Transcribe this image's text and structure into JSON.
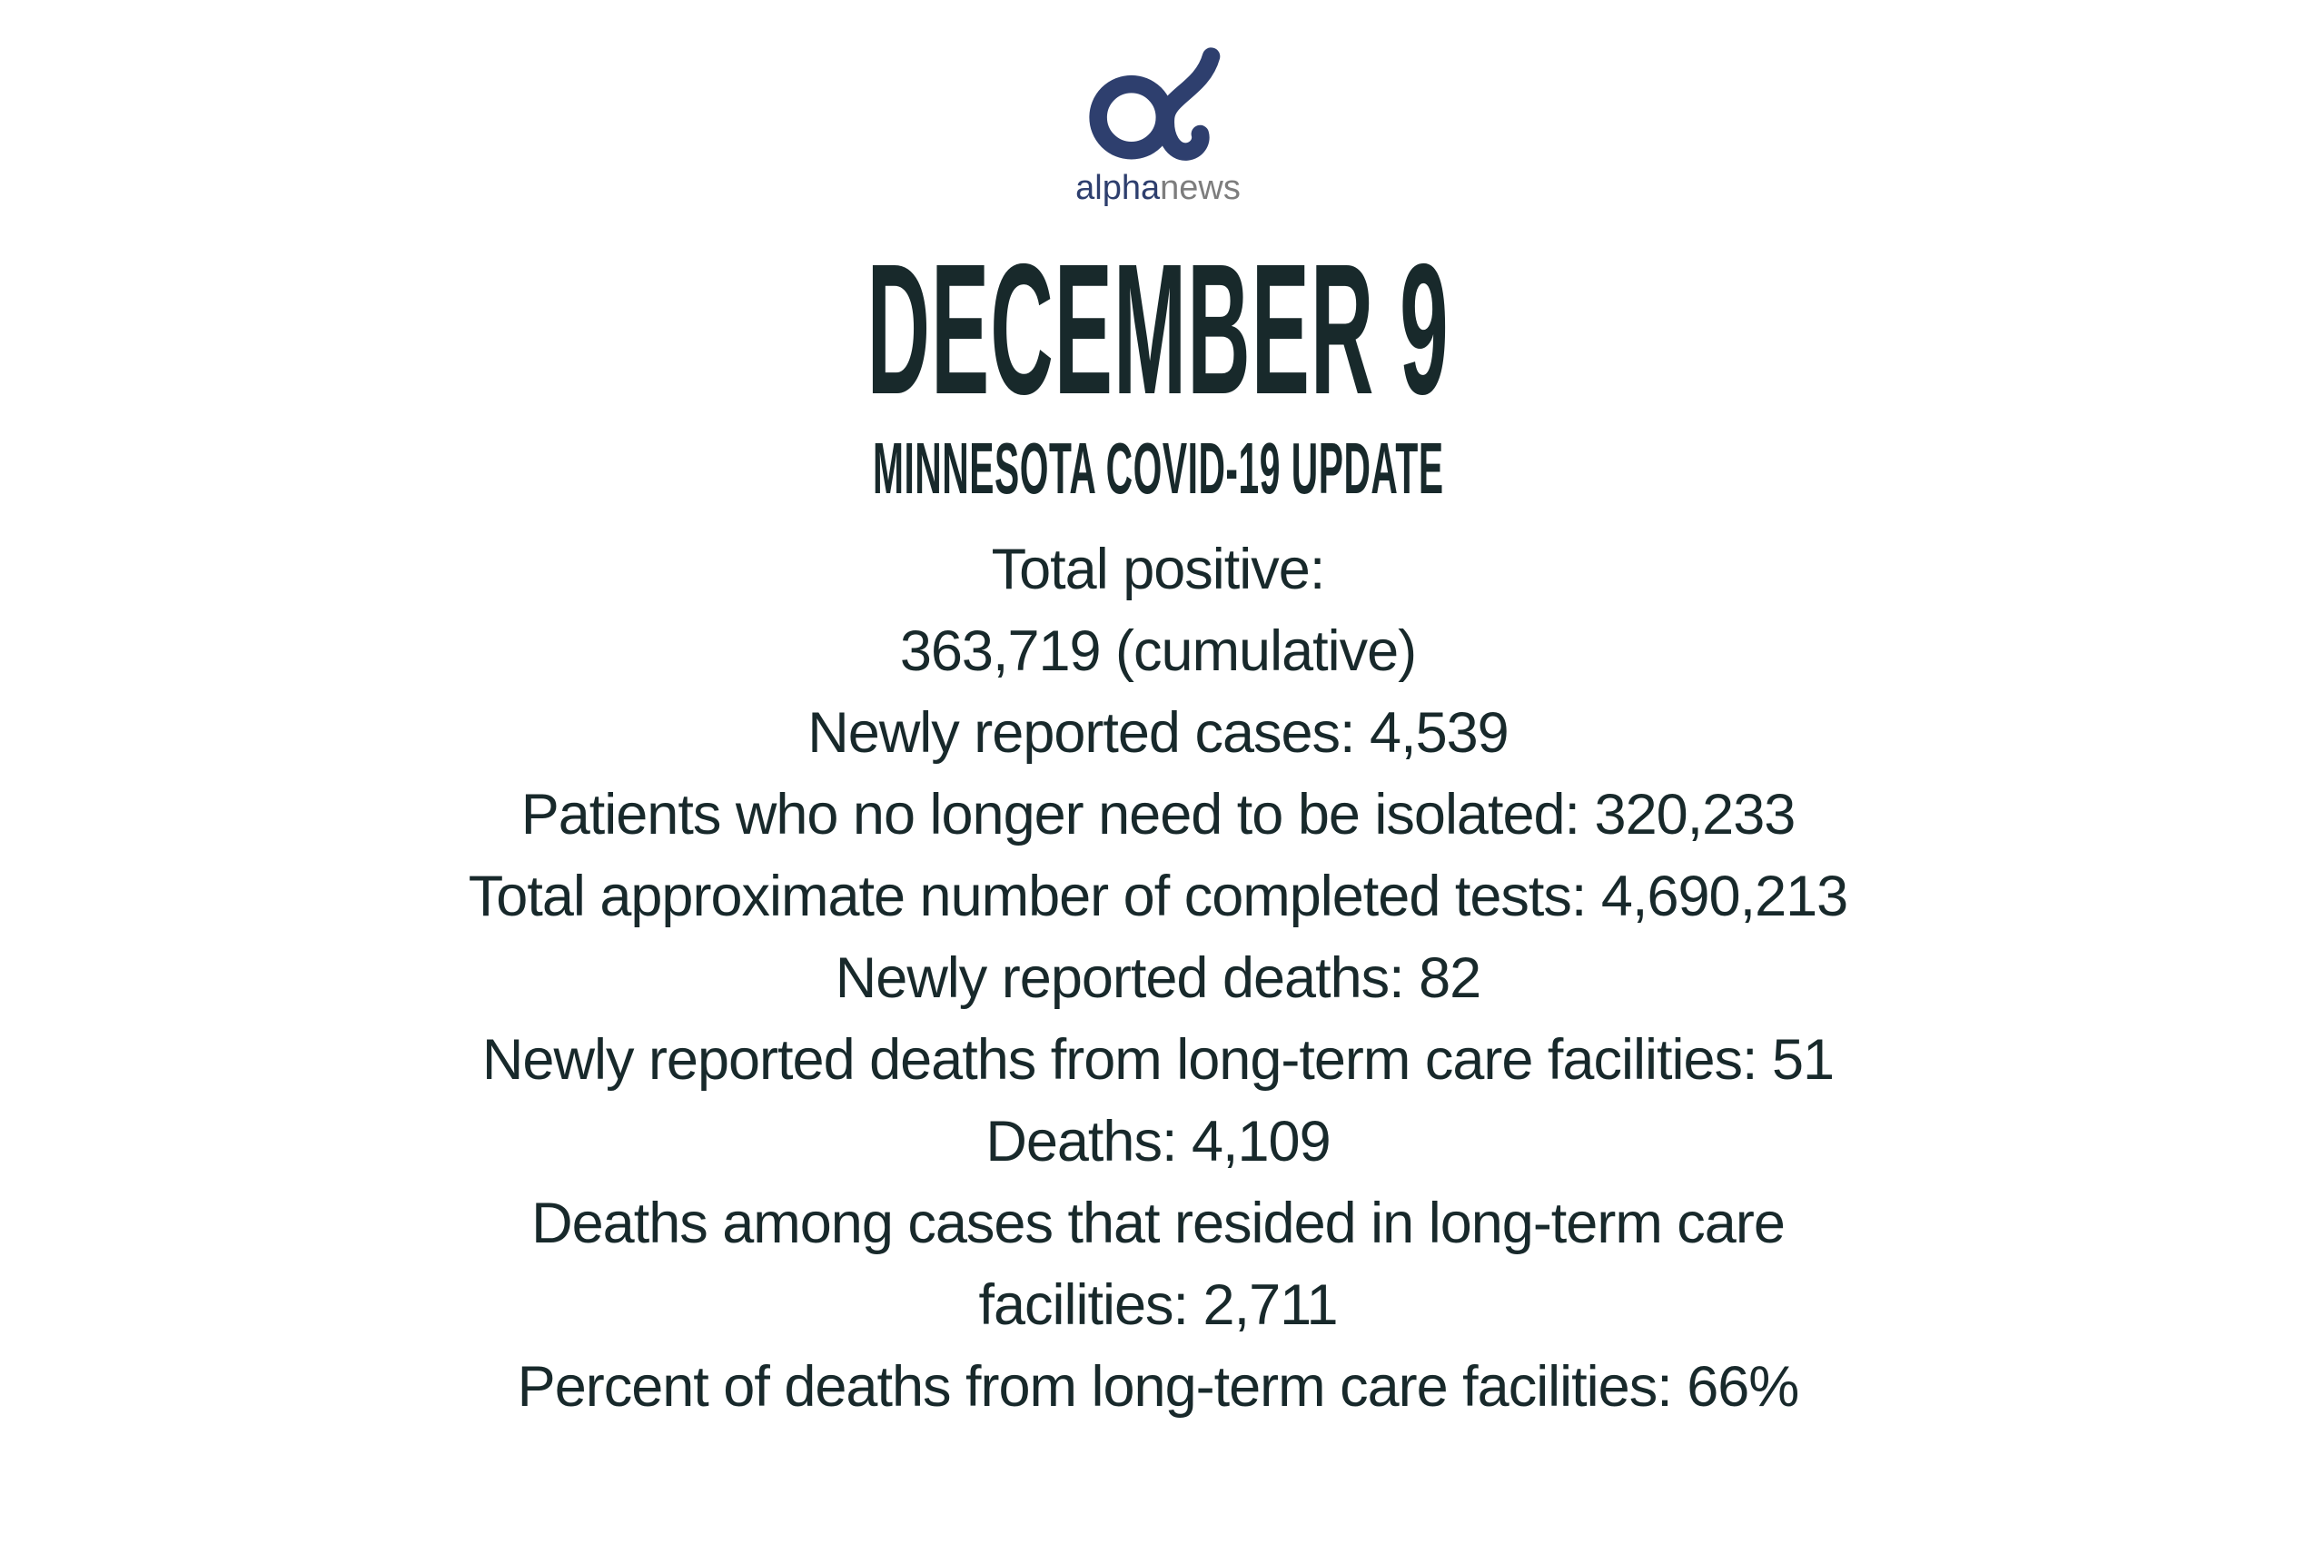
{
  "colors": {
    "ink": "#18292b",
    "logo_blue": "#2e3f6e",
    "logo_gray": "#7d7d7d",
    "background": "#ffffff"
  },
  "logo": {
    "glyph": "alpha-symbol-icon",
    "word_primary": "alpha",
    "word_secondary": "news"
  },
  "header": {
    "title": "DECEMBER 9",
    "subtitle": "MINNESOTA COVID-19 UPDATE"
  },
  "stats": {
    "lines": [
      "Total positive:",
      "363,719 (cumulative)",
      "Newly reported cases: 4,539",
      "Patients who no longer need to be isolated: 320,233",
      "Total approximate number of completed tests: 4,690,213",
      "Newly reported deaths: 82",
      "Newly reported deaths from long-term care facilities: 51",
      "Deaths: 4,109",
      "Deaths among cases that resided in long-term care",
      "facilities: 2,711",
      "Percent of deaths from long-term care facilities: 66%"
    ]
  }
}
